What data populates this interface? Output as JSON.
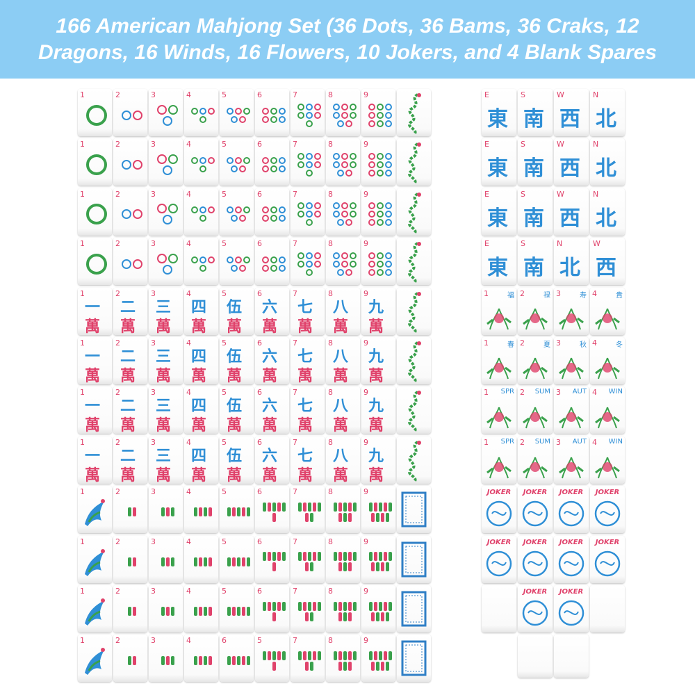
{
  "title": "166 American Mahjong Set (36 Dots, 36 Bams, 36 Craks, 12 Dragons, 16 Winds, 16 Flowers, 10 Jokers, and 4 Blank Spares",
  "left": {
    "dots": [
      [
        "1",
        "2",
        "3",
        "4",
        "5",
        "6",
        "7",
        "8",
        "9"
      ],
      [
        "1",
        "2",
        "3",
        "4",
        "5",
        "6",
        "7",
        "8",
        "9"
      ],
      [
        "1",
        "2",
        "3",
        "4",
        "5",
        "6",
        "7",
        "8",
        "9"
      ],
      [
        "1",
        "2",
        "3",
        "4",
        "5",
        "6",
        "7",
        "8",
        "9"
      ]
    ],
    "craks": [
      [
        [
          "1",
          "一",
          "萬"
        ],
        [
          "2",
          "二",
          "萬"
        ],
        [
          "3",
          "三",
          "萬"
        ],
        [
          "4",
          "四",
          "萬"
        ],
        [
          "5",
          "伍",
          "萬"
        ],
        [
          "6",
          "六",
          "萬"
        ],
        [
          "7",
          "七",
          "萬"
        ],
        [
          "8",
          "八",
          "萬"
        ],
        [
          "9",
          "九",
          "萬"
        ]
      ],
      [
        [
          "1",
          "一",
          "萬"
        ],
        [
          "2",
          "二",
          "萬"
        ],
        [
          "3",
          "三",
          "萬"
        ],
        [
          "4",
          "四",
          "萬"
        ],
        [
          "5",
          "伍",
          "萬"
        ],
        [
          "6",
          "六",
          "萬"
        ],
        [
          "7",
          "七",
          "萬"
        ],
        [
          "8",
          "八",
          "萬"
        ],
        [
          "9",
          "九",
          "萬"
        ]
      ],
      [
        [
          "1",
          "一",
          "萬"
        ],
        [
          "2",
          "二",
          "萬"
        ],
        [
          "3",
          "三",
          "萬"
        ],
        [
          "4",
          "四",
          "萬"
        ],
        [
          "5",
          "伍",
          "萬"
        ],
        [
          "6",
          "六",
          "萬"
        ],
        [
          "7",
          "七",
          "萬"
        ],
        [
          "8",
          "八",
          "萬"
        ],
        [
          "9",
          "九",
          "萬"
        ]
      ],
      [
        [
          "1",
          "一",
          "萬"
        ],
        [
          "2",
          "二",
          "萬"
        ],
        [
          "3",
          "三",
          "萬"
        ],
        [
          "4",
          "四",
          "萬"
        ],
        [
          "5",
          "伍",
          "萬"
        ],
        [
          "6",
          "六",
          "萬"
        ],
        [
          "7",
          "七",
          "萬"
        ],
        [
          "8",
          "八",
          "萬"
        ],
        [
          "9",
          "九",
          "萬"
        ]
      ]
    ],
    "bams": [
      [
        "1",
        "2",
        "3",
        "4",
        "5",
        "6",
        "7",
        "8",
        "9"
      ],
      [
        "1",
        "2",
        "3",
        "4",
        "5",
        "6",
        "7",
        "8",
        "9"
      ],
      [
        "1",
        "2",
        "3",
        "4",
        "5",
        "6",
        "7",
        "8",
        "9"
      ],
      [
        "1",
        "2",
        "3",
        "4",
        "6",
        "5",
        "7",
        "8",
        "9"
      ]
    ]
  },
  "right": {
    "winds": [
      [
        [
          "E",
          "東"
        ],
        [
          "S",
          "南"
        ],
        [
          "W",
          "西"
        ],
        [
          "N",
          "北"
        ]
      ],
      [
        [
          "E",
          "東"
        ],
        [
          "S",
          "南"
        ],
        [
          "W",
          "西"
        ],
        [
          "N",
          "北"
        ]
      ],
      [
        [
          "E",
          "東"
        ],
        [
          "S",
          "南"
        ],
        [
          "W",
          "西"
        ],
        [
          "N",
          "北"
        ]
      ],
      [
        [
          "E",
          "東"
        ],
        [
          "S",
          "南"
        ],
        [
          "N",
          "北"
        ],
        [
          "W",
          "西"
        ]
      ]
    ],
    "flowers": [
      [
        [
          "1",
          "福"
        ],
        [
          "2",
          "禄"
        ],
        [
          "3",
          "寿"
        ],
        [
          "4",
          "貴"
        ]
      ],
      [
        [
          "1",
          "春"
        ],
        [
          "2",
          "夏"
        ],
        [
          "3",
          "秋"
        ],
        [
          "4",
          "冬"
        ]
      ],
      [
        [
          "1",
          "SPR"
        ],
        [
          "2",
          "SUM"
        ],
        [
          "3",
          "AUT"
        ],
        [
          "4",
          "WIN"
        ]
      ],
      [
        [
          "1",
          "SPR"
        ],
        [
          "2",
          "SUM"
        ],
        [
          "3",
          "AUT"
        ],
        [
          "4",
          "WIN"
        ]
      ]
    ],
    "jokers": [
      [
        "JOKER",
        "JOKER",
        "JOKER",
        "JOKER"
      ],
      [
        "JOKER",
        "JOKER",
        "JOKER",
        "JOKER"
      ],
      [
        "JOKER",
        "JOKER"
      ]
    ]
  }
}
